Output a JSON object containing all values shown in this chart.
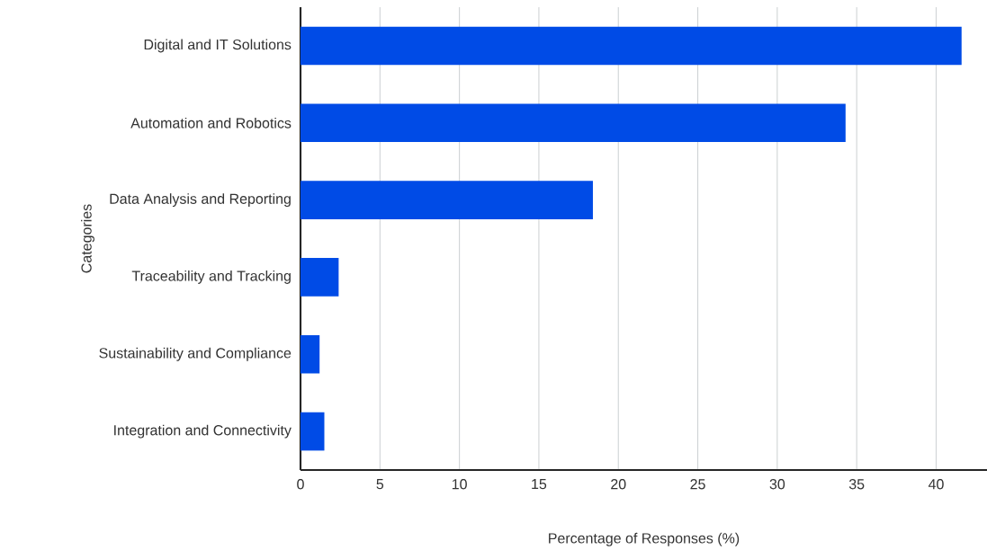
{
  "chart_data": {
    "type": "bar",
    "orientation": "horizontal",
    "xlabel": "Percentage of Responses (%)",
    "ylabel": "Categories",
    "categories": [
      "Digital and IT Solutions",
      "Automation and Robotics",
      "Data Analysis and Reporting",
      "Traceability and Tracking",
      "Sustainability and Compliance",
      "Integration and Connectivity"
    ],
    "values": [
      41.6,
      34.3,
      18.4,
      2.4,
      1.2,
      1.5
    ],
    "color": "#004be6",
    "xlim": [
      0,
      43.2
    ],
    "xticks": [
      0,
      5,
      10,
      15,
      20,
      25,
      30,
      35,
      40
    ],
    "grid": "x"
  }
}
